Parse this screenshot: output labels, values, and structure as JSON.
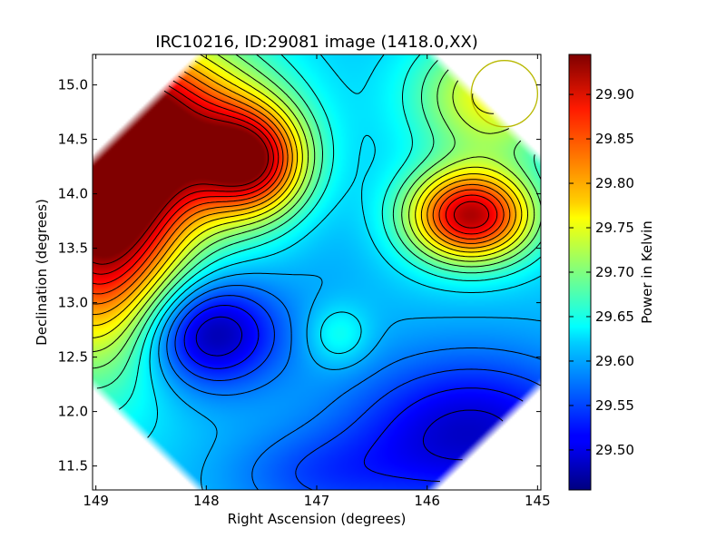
{
  "chart_data": {
    "type": "heatmap",
    "title": "IRC10216, ID:29081 image (1418.0,XX)",
    "xlabel": "Right Ascension (degrees)",
    "ylabel": "Declination (degrees)",
    "colorbar_label": "Power in Kelvin",
    "xlim": [
      149.03,
      144.97
    ],
    "ylim": [
      11.28,
      15.28
    ],
    "x_ticks": [
      149,
      148,
      147,
      146,
      145
    ],
    "x_tick_labels": [
      "149",
      "148",
      "147",
      "146",
      "145"
    ],
    "y_ticks": [
      11.5,
      12.0,
      12.5,
      13.0,
      13.5,
      14.0,
      14.5,
      15.0
    ],
    "y_tick_labels": [
      "11.5",
      "12.0",
      "12.5",
      "13.0",
      "13.5",
      "14.0",
      "14.5",
      "15.0"
    ],
    "colorbar_range": [
      29.455,
      29.945
    ],
    "colorbar_ticks": [
      29.5,
      29.55,
      29.6,
      29.65,
      29.7,
      29.75,
      29.8,
      29.85,
      29.9
    ],
    "colorbar_tick_labels": [
      "29.50",
      "29.55",
      "29.60",
      "29.65",
      "29.70",
      "29.75",
      "29.80",
      "29.85",
      "29.90"
    ],
    "colormap": "jet",
    "grid": false,
    "features": [
      {
        "kind": "max",
        "ra": 148.95,
        "dec": 13.8,
        "value": 29.94,
        "sx": 0.5,
        "sy": 0.9
      },
      {
        "kind": "max",
        "ra": 148.5,
        "dec": 14.6,
        "value": 29.89,
        "sx": 0.7,
        "sy": 0.6
      },
      {
        "kind": "max",
        "ra": 147.6,
        "dec": 14.3,
        "value": 29.87,
        "sx": 0.35,
        "sy": 0.35
      },
      {
        "kind": "max",
        "ra": 145.6,
        "dec": 13.8,
        "value": 29.92,
        "sx": 0.4,
        "sy": 0.3
      },
      {
        "kind": "max",
        "ra": 145.4,
        "dec": 14.9,
        "value": 29.76,
        "sx": 0.5,
        "sy": 0.4
      },
      {
        "kind": "min",
        "ra": 148.0,
        "dec": 12.72,
        "value": 29.46,
        "sx": 0.45,
        "sy": 0.35
      },
      {
        "kind": "min",
        "ra": 145.6,
        "dec": 11.8,
        "value": 29.49,
        "sx": 0.8,
        "sy": 0.5
      },
      {
        "kind": "min",
        "ra": 146.9,
        "dec": 13.4,
        "value": 29.6,
        "sx": 0.35,
        "sy": 0.6
      },
      {
        "kind": "min",
        "ra": 147.0,
        "dec": 11.4,
        "value": 29.56,
        "sx": 0.6,
        "sy": 0.3
      },
      {
        "kind": "max",
        "ra": 146.8,
        "dec": 12.7,
        "value": 29.66,
        "sx": 0.2,
        "sy": 0.2
      }
    ],
    "beam_circle": {
      "ra": 145.3,
      "dec": 14.92,
      "radius_deg": 0.3,
      "color": "#b8b800"
    }
  }
}
